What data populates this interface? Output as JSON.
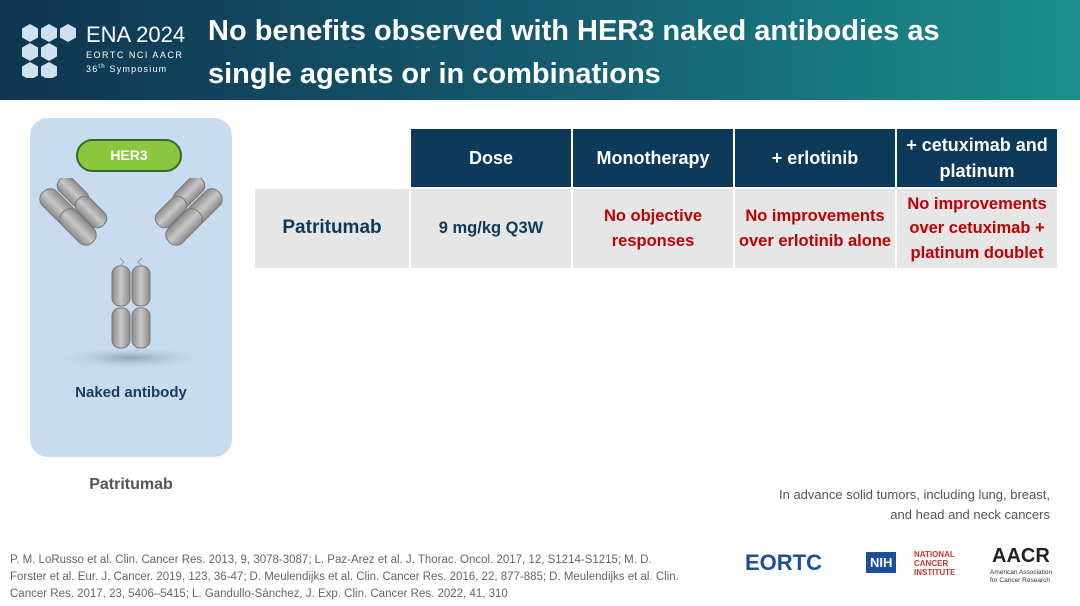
{
  "header": {
    "logo": {
      "title": "ENA 2024",
      "subtitle": "EORTC NCI AACR",
      "number": "36",
      "suffix": "th",
      "symposium": "Symposium"
    },
    "title": "No benefits observed with HER3 naked antibodies as single agents or in combinations"
  },
  "figure": {
    "target": "HER3",
    "label": "Naked antibody",
    "caption": "Patritumab"
  },
  "table": {
    "columns": [
      "Dose",
      "Monotherapy",
      "+ erlotinib",
      "+ cetuximab and platinum"
    ],
    "rows": [
      [
        "Patritumab",
        "9 mg/kg Q3W",
        "No objective responses",
        "No improvements over erlotinib alone",
        "No improvements over cetuximab + platinum doublet"
      ]
    ]
  },
  "note": "In advance solid tumors, including lung, breast, and head and neck cancers",
  "references": [
    "P. M. LoRusso et al. Clin. Cancer Res. 2013, 9, 3078-3087;",
    "L. Paz-Arez et al. J. Thorac. Oncol. 2017, 12, S1214-S1215;",
    "M. D. Forster et al. Eur. J. Cancer. 2019, 123, 36-47;",
    "D. Meulendijks et al. Clin. Cancer Res. 2016, 22, 877-885;",
    "D. Meulendijks et al. Clin. Cancer Res. 2017, 23, 5406–5415;",
    "L. Gandullo-Sánchez, J. Exp. Clin. Cancer Res. 2022, 41, 310"
  ],
  "footer_logos": {
    "eortc": "EORTC",
    "nih": "NIH",
    "nci": "NATIONAL CANCER INSTITUTE",
    "aacr": "AACR",
    "aacr_full": "American Association for Cancer Research"
  }
}
